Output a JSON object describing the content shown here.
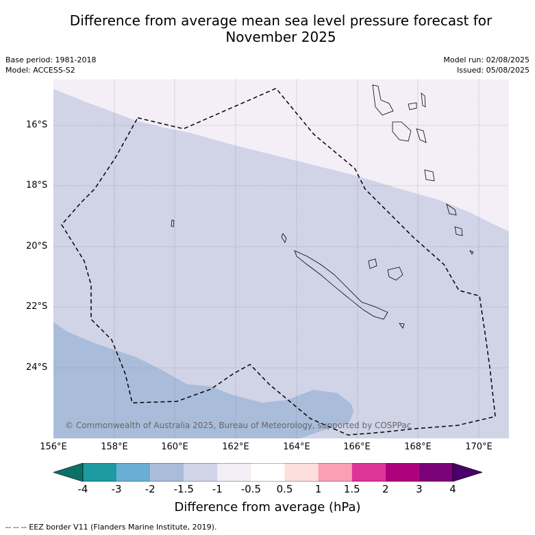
{
  "title": "Difference from average mean sea level pressure forecast for",
  "title_line2": "November 2025",
  "meta": {
    "base_period": "Base period: 1981-2018",
    "model": "Model: ACCESS-S2",
    "model_run": "Model run: 02/08/2025",
    "issued": "Issued: 05/08/2025"
  },
  "map": {
    "lat_labels": [
      "16°S",
      "18°S",
      "20°S",
      "22°S",
      "24°S"
    ],
    "lon_labels": [
      "156°E",
      "158°E",
      "160°E",
      "162°E",
      "164°E",
      "166°E",
      "168°E",
      "170°E"
    ],
    "copyright": "© Commonwealth of Australia 2025, Bureau of Meteorology, supported by COSPPac",
    "colors": {
      "band_neg1_neg05": "#f4eef6",
      "band_neg15_neg1": "#d1d3e7",
      "band_neg2_neg15": "#a9bcda"
    }
  },
  "colorbar": {
    "ticks": [
      "-4",
      "-3",
      "-2",
      "-1.5",
      "-1",
      "-0.5",
      "0.5",
      "1",
      "1.5",
      "2",
      "3",
      "4"
    ],
    "colors": [
      "#0d7068",
      "#1e9aa2",
      "#6aaed4",
      "#a9bcda",
      "#d1d3e7",
      "#f4eef6",
      "#ffffff",
      "#fde0dd",
      "#fa9fb5",
      "#dd3497",
      "#ae017e",
      "#7a0177",
      "#49006a"
    ],
    "label": "Difference from average (hPa)"
  },
  "footnote": "--  --  -- EEZ border V11 (Flanders Marine Institute, 2019)."
}
